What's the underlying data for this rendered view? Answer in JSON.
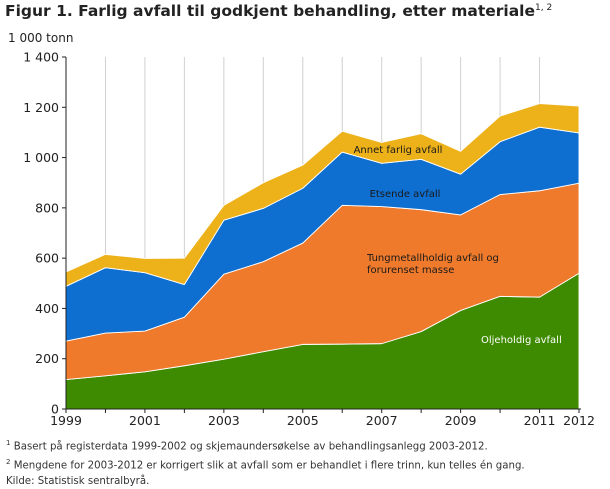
{
  "title": {
    "text": "Figur 1. Farlig avfall til godkjent behandling, etter materiale",
    "superscript": "1, 2"
  },
  "chart_data": {
    "type": "area",
    "stacked": true,
    "ylabel": "1 000 tonn",
    "ylim": [
      0,
      1400
    ],
    "y_ticks": [
      "0",
      "200",
      "400",
      "600",
      "800",
      "1 000",
      "1 200",
      "1 400"
    ],
    "y_tick_values": [
      0,
      200,
      400,
      600,
      800,
      1000,
      1200,
      1400
    ],
    "x": [
      1999,
      2000,
      2001,
      2002,
      2003,
      2004,
      2005,
      2006,
      2007,
      2008,
      2009,
      2010,
      2011,
      2012
    ],
    "x_tick_labels": [
      "1999",
      "2001",
      "2003",
      "2005",
      "2007",
      "2009",
      "2011",
      "2012"
    ],
    "grid": "vertical",
    "series": [
      {
        "name": "Oljeholdig avfall",
        "color": "#3e8a00",
        "values": [
          117,
          132,
          148,
          172,
          198,
          228,
          257,
          258,
          260,
          308,
          392,
          448,
          445,
          540
        ]
      },
      {
        "name": "Tungmetallholdig avfall og forurenset masse",
        "color": "#ef7a2b",
        "values": [
          153,
          170,
          162,
          193,
          338,
          358,
          403,
          552,
          545,
          485,
          380,
          405,
          423,
          358
        ]
      },
      {
        "name": "Etsende avfall",
        "color": "#0f6fd0",
        "values": [
          218,
          260,
          232,
          130,
          215,
          212,
          218,
          212,
          172,
          200,
          162,
          210,
          253,
          200
        ]
      },
      {
        "name": "Annet farlig avfall",
        "color": "#edb11a",
        "values": [
          57,
          53,
          57,
          105,
          59,
          102,
          92,
          83,
          83,
          102,
          91,
          102,
          94,
          107
        ]
      }
    ],
    "area_labels": [
      "Annet farlig avfall",
      "Etsende avfall",
      "Tungmetallholdig avfall og",
      "forurenset masse",
      "Oljeholdig avfall"
    ]
  },
  "notes": {
    "note1_mark": "1",
    "note1": "Basert på registerdata 1999-2002 og skjemaundersøkelse av behandlingsanlegg 2003-2012.",
    "note2_mark": "2",
    "note2": "Mengdene for 2003-2012 er korrigert slik at avfall som er behandlet i flere trinn, kun telles én gang.",
    "source": "Kilde: Statistisk sentralbyrå."
  }
}
